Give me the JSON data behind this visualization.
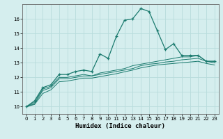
{
  "x": [
    0,
    1,
    2,
    3,
    4,
    5,
    6,
    7,
    8,
    9,
    10,
    11,
    12,
    13,
    14,
    15,
    16,
    17,
    18,
    19,
    20,
    21,
    22,
    23
  ],
  "line_main": [
    10.0,
    10.4,
    11.3,
    11.5,
    12.2,
    12.2,
    12.4,
    12.5,
    12.4,
    13.6,
    13.3,
    14.8,
    15.9,
    16.0,
    16.7,
    16.5,
    15.2,
    13.9,
    14.3,
    13.5,
    13.5,
    13.5,
    13.1,
    13.1
  ],
  "line2": [
    10.0,
    10.3,
    11.2,
    11.4,
    12.0,
    12.0,
    12.1,
    12.2,
    12.1,
    12.3,
    12.4,
    12.5,
    12.6,
    12.8,
    12.9,
    13.0,
    13.1,
    13.2,
    13.3,
    13.4,
    13.4,
    13.5,
    13.1,
    13.1
  ],
  "line3": [
    10.0,
    10.2,
    11.1,
    11.3,
    11.9,
    11.9,
    12.0,
    12.1,
    12.1,
    12.2,
    12.3,
    12.4,
    12.5,
    12.6,
    12.8,
    12.9,
    12.95,
    13.05,
    13.1,
    13.2,
    13.25,
    13.3,
    13.1,
    13.0
  ],
  "line4": [
    10.0,
    10.15,
    10.9,
    11.15,
    11.7,
    11.75,
    11.85,
    11.95,
    11.95,
    12.05,
    12.15,
    12.25,
    12.38,
    12.5,
    12.65,
    12.75,
    12.85,
    12.9,
    12.95,
    13.0,
    13.05,
    13.1,
    12.95,
    12.85
  ],
  "color_main": "#1a7a6e",
  "color_lines": "#1a7a6e",
  "bg_color": "#d5eeee",
  "grid_color": "#b8dcdc",
  "xlabel": "Humidex (Indice chaleur)",
  "ylim": [
    9.5,
    17.0
  ],
  "xlim": [
    -0.5,
    23.5
  ],
  "yticks": [
    10,
    11,
    12,
    13,
    14,
    15,
    16
  ],
  "xticks": [
    0,
    1,
    2,
    3,
    4,
    5,
    6,
    7,
    8,
    9,
    10,
    11,
    12,
    13,
    14,
    15,
    16,
    17,
    18,
    19,
    20,
    21,
    22,
    23
  ]
}
